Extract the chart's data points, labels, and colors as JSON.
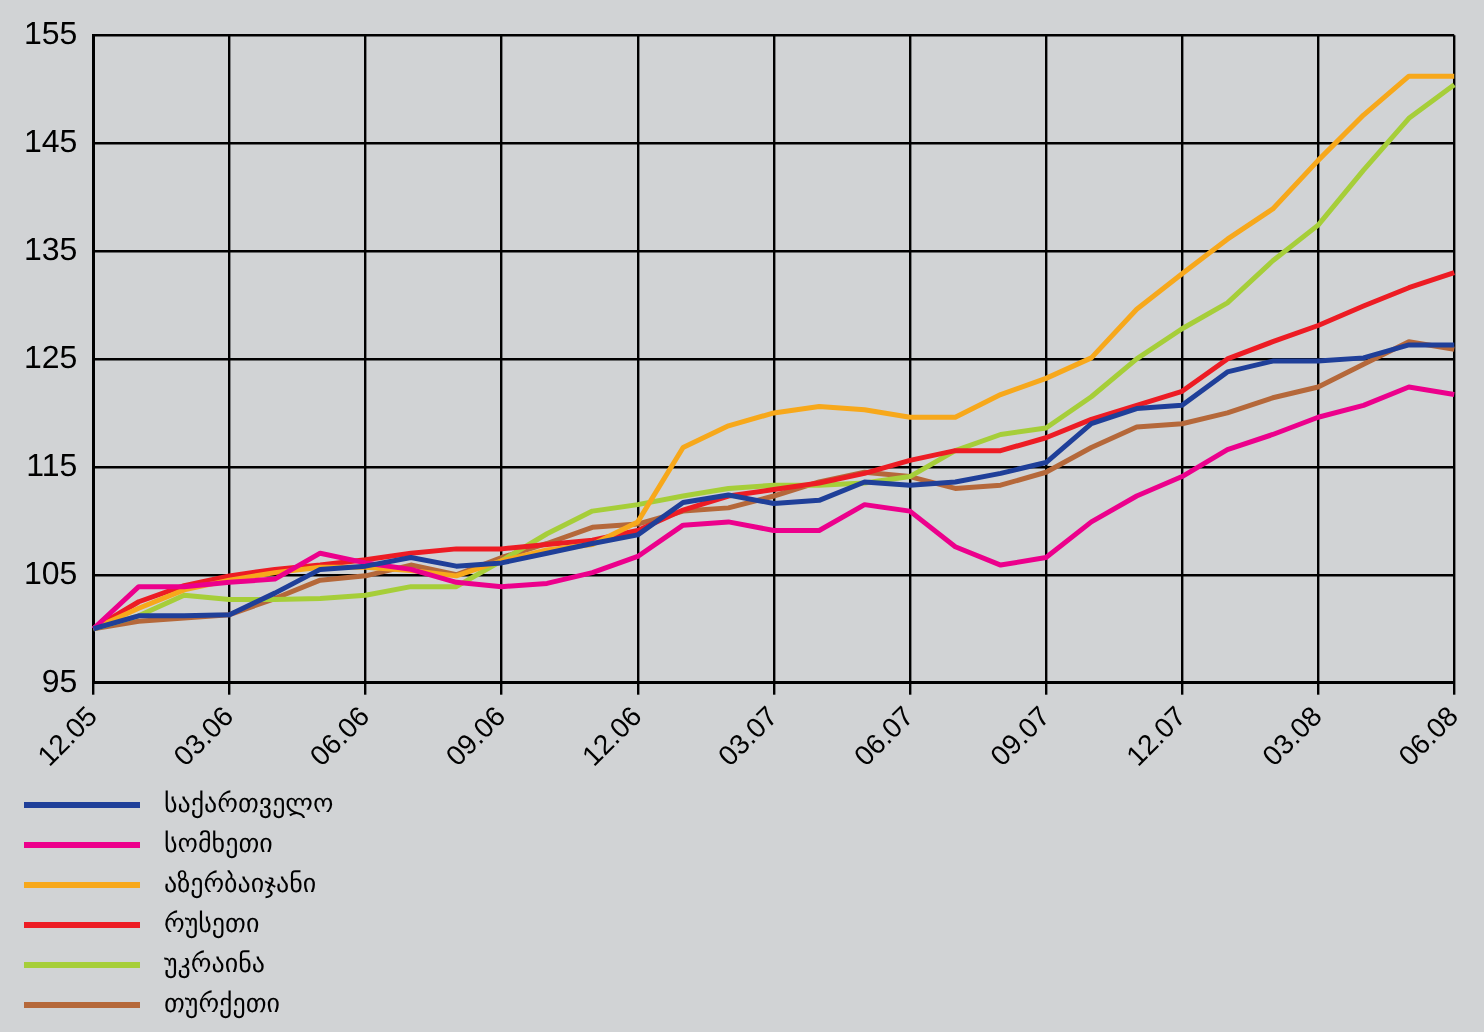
{
  "chart_data": {
    "type": "line",
    "categories": [
      "12.05",
      null,
      null,
      "03.06",
      null,
      null,
      "06.06",
      null,
      null,
      "09.06",
      null,
      null,
      "12.06",
      null,
      null,
      "03.07",
      null,
      null,
      "06.07",
      null,
      null,
      "09.07",
      null,
      null,
      "12.07",
      null,
      null,
      "03.08",
      null,
      null,
      "06.08"
    ],
    "series": [
      {
        "name": "საქართველო",
        "color": "#1f3f99",
        "values": [
          100,
          101.2,
          101.2,
          101.3,
          103.3,
          105.5,
          105.8,
          106.6,
          105.8,
          106.1,
          107,
          107.9,
          108.7,
          111.7,
          112.4,
          111.6,
          111.9,
          113.6,
          113.3,
          113.6,
          114.4,
          115.4,
          119,
          120.4,
          120.7,
          123.8,
          124.8,
          124.8,
          125.1,
          126.3,
          126.3
        ]
      },
      {
        "name": "სომხეთი",
        "color": "#ec008c",
        "values": [
          100,
          103.9,
          103.9,
          104.3,
          104.6,
          107,
          106.1,
          105.5,
          104.3,
          103.9,
          104.2,
          105.2,
          106.7,
          109.6,
          109.9,
          109.1,
          109.1,
          111.5,
          110.9,
          107.6,
          105.9,
          106.6,
          109.9,
          112.3,
          114.1,
          116.6,
          118,
          119.6,
          120.7,
          122.4,
          121.7
        ]
      },
      {
        "name": "აზერბაიჯანი",
        "color": "#f7a81b",
        "values": [
          100,
          101.9,
          103.6,
          104.5,
          105.2,
          105.7,
          105.7,
          105.4,
          104.9,
          106.3,
          107.3,
          107.8,
          109.9,
          116.8,
          118.8,
          120,
          120.6,
          120.3,
          119.6,
          119.6,
          121.7,
          123.2,
          125.1,
          129.6,
          132.9,
          136.1,
          138.9,
          143.4,
          147.6,
          151.2,
          151.2
        ]
      },
      {
        "name": "რუსეთი",
        "color": "#ed1c24",
        "values": [
          100,
          102.5,
          104,
          104.9,
          105.5,
          105.9,
          106.4,
          107,
          107.4,
          107.4,
          107.8,
          108.2,
          109.1,
          111,
          112.3,
          112.9,
          113.5,
          114.4,
          115.6,
          116.5,
          116.5,
          117.7,
          119.4,
          120.7,
          122,
          125,
          126.6,
          128.1,
          129.9,
          131.6,
          133
        ]
      },
      {
        "name": "უკრაინა",
        "color": "#a6ce39",
        "values": [
          100,
          101.2,
          103.1,
          102.7,
          102.7,
          102.8,
          103.1,
          103.9,
          103.9,
          106.3,
          108.8,
          110.9,
          111.5,
          112.3,
          113,
          113.3,
          113.3,
          113.5,
          114.1,
          116.5,
          118,
          118.6,
          121.5,
          125,
          127.8,
          130.2,
          134.1,
          137.4,
          142.5,
          147.3,
          150.4
        ]
      },
      {
        "name": "თურქეთი",
        "color": "#b5683a",
        "values": [
          100,
          100.7,
          101,
          101.3,
          102.8,
          104.5,
          104.9,
          105.9,
          105,
          106.6,
          107.9,
          109.4,
          109.7,
          110.9,
          111.2,
          112.3,
          113.6,
          114.5,
          114.1,
          113,
          113.3,
          114.5,
          116.8,
          118.7,
          119,
          120,
          121.4,
          122.4,
          124.5,
          126.6,
          125.9
        ]
      }
    ],
    "ylim": [
      95,
      155
    ],
    "yticks": [
      95,
      105,
      115,
      125,
      135,
      145,
      155
    ],
    "grid": true,
    "legend": "bottom left",
    "marker": "none",
    "line_style": "solid"
  }
}
